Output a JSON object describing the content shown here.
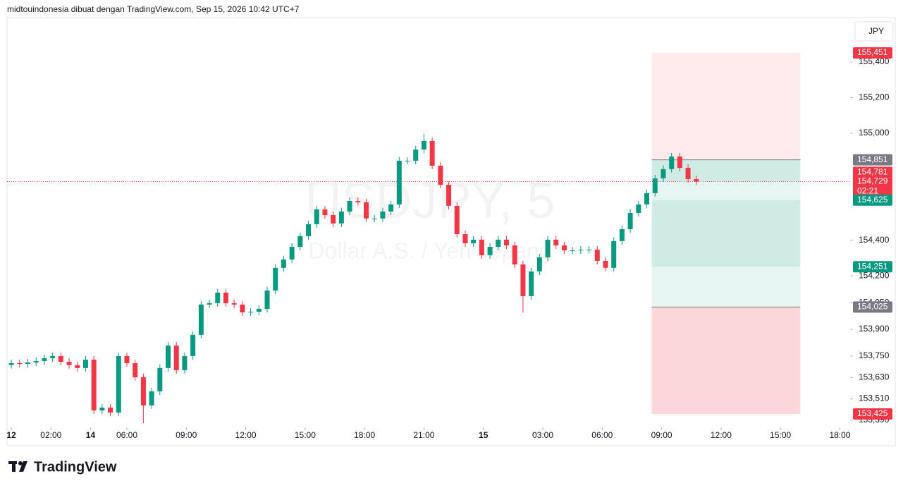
{
  "chart_data": {
    "type": "candlestick",
    "header": "midtouindonesia dibuat dengan TradingView.com, Sep 15, 2026 10:42 UTC+7",
    "watermark": [
      "USDJPY, 5",
      "Dollar A.S. / Yen Jepang"
    ],
    "currency": "JPY",
    "logo": "TradingView",
    "up_color": "#089981",
    "down_color": "#f23645",
    "xlim": [
      -2.6,
      508.2
    ],
    "ylim": [
      153.354,
      155.649
    ],
    "xticks": [
      {
        "value": 0,
        "label": "12"
      },
      {
        "value": 24,
        "label": "02:00"
      },
      {
        "value": 48,
        "label": "14"
      },
      {
        "value": 70,
        "label": "06:00"
      },
      {
        "value": 106,
        "label": "09:00"
      },
      {
        "value": 142,
        "label": "12:00"
      },
      {
        "value": 178,
        "label": "15:00"
      },
      {
        "value": 214,
        "label": "18:00"
      },
      {
        "value": 250,
        "label": "21:00"
      },
      {
        "value": 286,
        "label": "15"
      },
      {
        "value": 322,
        "label": "03:00"
      },
      {
        "value": 358,
        "label": "06:00"
      },
      {
        "value": 394,
        "label": "09:00"
      },
      {
        "value": 430,
        "label": "12:00"
      },
      {
        "value": 466,
        "label": "15:00"
      },
      {
        "value": 502,
        "label": "18:00"
      }
    ],
    "yticks": [
      {
        "value": 155.4,
        "label": "155,400"
      },
      {
        "value": 155.2,
        "label": "155,200"
      },
      {
        "value": 155.0,
        "label": "155,000"
      },
      {
        "value": 154.4,
        "label": "154,400"
      },
      {
        "value": 154.2,
        "label": "154,200"
      },
      {
        "value": 154.05,
        "label": "154,050"
      },
      {
        "value": 153.9,
        "label": "153,900"
      },
      {
        "value": 153.75,
        "label": "153,750"
      },
      {
        "value": 153.63,
        "label": "153,630"
      },
      {
        "value": 153.51,
        "label": "153,510"
      },
      {
        "value": 153.39,
        "label": "153,390"
      }
    ],
    "x": [
      0,
      5,
      10,
      15,
      20,
      25,
      30,
      35,
      40,
      45,
      50,
      55,
      60,
      65,
      70,
      75,
      80,
      85,
      90,
      95,
      100,
      105,
      110,
      115,
      120,
      125,
      130,
      135,
      140,
      145,
      150,
      155,
      160,
      165,
      170,
      175,
      180,
      185,
      190,
      195,
      200,
      205,
      210,
      215,
      220,
      225,
      230,
      235,
      240,
      245,
      250,
      255,
      260,
      265,
      270,
      275,
      280,
      285,
      290,
      295,
      300,
      305,
      310,
      315,
      320,
      325,
      330,
      335,
      340,
      345,
      350,
      355,
      360,
      365,
      370,
      375,
      380,
      385,
      390,
      395,
      400,
      405,
      410,
      415
    ],
    "open": [
      153.7,
      153.71,
      153.706,
      153.714,
      153.722,
      153.738,
      153.75,
      153.718,
      153.699,
      153.683,
      153.73,
      153.445,
      153.461,
      153.433,
      153.75,
      153.71,
      153.631,
      153.473,
      153.552,
      153.683,
      153.809,
      153.671,
      153.75,
      153.869,
      154.039,
      154.047,
      154.106,
      154.047,
      154.039,
      153.995,
      153.999,
      154.015,
      154.118,
      154.245,
      154.292,
      154.363,
      154.423,
      154.49,
      154.573,
      154.541,
      154.494,
      154.561,
      154.62,
      154.613,
      154.522,
      154.522,
      154.561,
      154.601,
      154.846,
      154.846,
      154.909,
      154.957,
      154.818,
      154.711,
      154.593,
      154.434,
      154.383,
      154.403,
      154.316,
      154.363,
      154.403,
      154.371,
      154.264,
      154.086,
      154.225,
      154.304,
      154.403,
      154.371,
      154.343,
      154.343,
      154.347,
      154.347,
      154.284,
      154.245,
      154.395,
      154.462,
      154.553,
      154.601,
      154.664,
      154.747,
      154.799,
      154.87,
      154.806,
      154.743
    ],
    "high": [
      153.73,
      153.73,
      153.734,
      153.742,
      153.758,
      153.77,
      153.77,
      153.738,
      153.719,
      153.75,
      153.75,
      153.481,
      153.481,
      153.77,
      153.77,
      153.73,
      153.651,
      153.572,
      153.703,
      153.829,
      153.829,
      153.77,
      153.889,
      154.059,
      154.067,
      154.126,
      154.126,
      154.067,
      154.059,
      154.019,
      154.035,
      154.138,
      154.265,
      154.312,
      154.383,
      154.443,
      154.51,
      154.593,
      154.593,
      154.561,
      154.581,
      154.64,
      154.64,
      154.633,
      154.542,
      154.581,
      154.621,
      154.866,
      154.866,
      154.929,
      154.996,
      154.977,
      154.838,
      154.731,
      154.613,
      154.454,
      154.423,
      154.423,
      154.383,
      154.423,
      154.423,
      154.391,
      154.284,
      154.245,
      154.324,
      154.423,
      154.423,
      154.391,
      154.363,
      154.367,
      154.367,
      154.367,
      154.304,
      154.415,
      154.482,
      154.573,
      154.621,
      154.684,
      154.767,
      154.819,
      154.89,
      154.89,
      154.826,
      154.763
    ],
    "low": [
      153.68,
      153.686,
      153.686,
      153.694,
      153.702,
      153.718,
      153.698,
      153.679,
      153.663,
      153.663,
      153.425,
      153.425,
      153.413,
      153.413,
      153.69,
      153.611,
      153.374,
      153.453,
      153.532,
      153.663,
      153.651,
      153.651,
      153.73,
      153.849,
      154.019,
      154.027,
      154.027,
      154.019,
      153.975,
      153.975,
      153.979,
      153.995,
      154.098,
      154.225,
      154.272,
      154.343,
      154.403,
      154.47,
      154.521,
      154.474,
      154.474,
      154.541,
      154.593,
      154.502,
      154.502,
      154.502,
      154.541,
      154.581,
      154.826,
      154.826,
      154.889,
      154.798,
      154.691,
      154.573,
      154.414,
      154.363,
      154.363,
      154.296,
      154.296,
      154.343,
      154.351,
      154.244,
      153.995,
      154.066,
      154.205,
      154.284,
      154.351,
      154.323,
      154.323,
      154.323,
      154.327,
      154.264,
      154.225,
      154.225,
      154.375,
      154.442,
      154.533,
      154.581,
      154.644,
      154.727,
      154.779,
      154.786,
      154.723,
      154.709
    ],
    "close": [
      153.71,
      153.706,
      153.714,
      153.722,
      153.738,
      153.75,
      153.718,
      153.699,
      153.683,
      153.73,
      153.445,
      153.461,
      153.433,
      153.75,
      153.71,
      153.631,
      153.473,
      153.552,
      153.683,
      153.809,
      153.671,
      153.75,
      153.869,
      154.039,
      154.047,
      154.106,
      154.047,
      154.039,
      153.995,
      153.999,
      154.015,
      154.118,
      154.245,
      154.292,
      154.363,
      154.423,
      154.49,
      154.573,
      154.541,
      154.494,
      154.561,
      154.62,
      154.613,
      154.522,
      154.522,
      154.561,
      154.601,
      154.846,
      154.846,
      154.909,
      154.957,
      154.818,
      154.711,
      154.593,
      154.434,
      154.383,
      154.403,
      154.316,
      154.363,
      154.403,
      154.371,
      154.264,
      154.086,
      154.225,
      154.304,
      154.403,
      154.371,
      154.343,
      154.343,
      154.347,
      154.347,
      154.284,
      154.245,
      154.395,
      154.462,
      154.553,
      154.601,
      154.664,
      154.747,
      154.799,
      154.87,
      154.806,
      154.743,
      154.729
    ],
    "box_x": [
      388,
      478
    ],
    "zones": [
      {
        "from": 155.451,
        "to": 154.851,
        "color": "rgba(242,54,69,0.1)"
      },
      {
        "from": 154.851,
        "to": 154.729,
        "color": "rgba(8,153,129,0.2)"
      },
      {
        "from": 154.729,
        "to": 154.625,
        "color": "rgba(8,153,129,0.1)"
      },
      {
        "from": 154.625,
        "to": 154.251,
        "color": "rgba(8,153,129,0.2)"
      },
      {
        "from": 154.251,
        "to": 154.025,
        "color": "rgba(8,153,129,0.1)"
      },
      {
        "from": 154.025,
        "to": 153.425,
        "color": "rgba(242,54,69,0.2)"
      }
    ],
    "price_labels": [
      {
        "value": 155.451,
        "label": "155,451",
        "color": "#f23645"
      },
      {
        "value": 154.851,
        "label": "154,851",
        "color": "#787b86",
        "line": "box"
      },
      {
        "value": 154.781,
        "label": "154,781",
        "color": "#f23645"
      },
      {
        "value": 154.729,
        "label": "154,729",
        "color": "#f23645",
        "countdown": "02:21",
        "line": "dotted"
      },
      {
        "value": 154.625,
        "label": "154,625",
        "color": "#089981"
      },
      {
        "value": 154.251,
        "label": "154,251",
        "color": "#089981"
      },
      {
        "value": 154.025,
        "label": "154,025",
        "color": "#787b86",
        "line": "box"
      },
      {
        "value": 153.425,
        "label": "153,425",
        "color": "#f23645"
      }
    ]
  }
}
